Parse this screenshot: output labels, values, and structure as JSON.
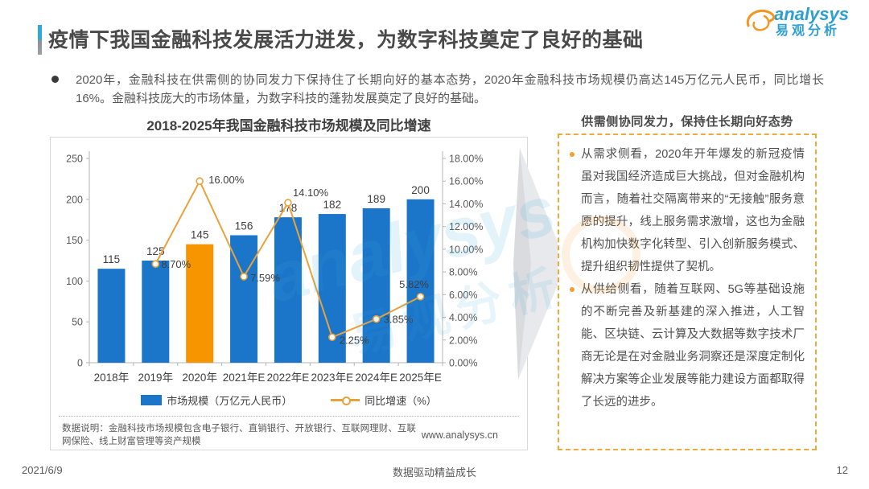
{
  "header": {
    "title": "疫情下我国金融科技发展活力迸发，为数字科技奠定了良好的基础",
    "logo": {
      "brand": "analysys",
      "brand_cn": "易观分析"
    }
  },
  "summary": {
    "bullet": "2020年，金融科技在供需侧的协同发力下保持住了长期向好的基本态势，2020年金融科技市场规模仍高达145万亿元人民币，同比增长16%。金融科技庞大的市场体量，为数字科技的蓬勃发展奠定了良好的基础。"
  },
  "chart_data": {
    "type": "bar",
    "combo": "bar+line",
    "title": "2018-2025年我国金融科技市场规模及同比增速",
    "categories": [
      "2018年",
      "2019年",
      "2020年",
      "2021年E",
      "2022年E",
      "2023年E",
      "2024年E",
      "2025年E"
    ],
    "series": [
      {
        "name": "市场规模（万亿元人民币）",
        "type": "bar",
        "values": [
          115,
          125,
          145,
          156,
          178,
          182,
          189,
          200
        ]
      },
      {
        "name": "同比增速（%）",
        "type": "line",
        "values": [
          null,
          8.7,
          16.0,
          7.59,
          14.1,
          2.25,
          3.85,
          5.82
        ],
        "labels": [
          "",
          "8.70%",
          "16.00%",
          "7.59%",
          "14.10%",
          "2.25%",
          "3.85%",
          "5.82%"
        ]
      }
    ],
    "highlight_index": 2,
    "bar_color": "#1b75c9",
    "highlight_color": "#f79500",
    "line_color": "#e9a23b",
    "left_axis": {
      "min": 0,
      "max": 250,
      "ticks": [
        250,
        200,
        150,
        100,
        50,
        0
      ]
    },
    "right_axis": {
      "min": 0,
      "max": 18,
      "ticks": [
        "18.00%",
        "16.00%",
        "14.00%",
        "12.00%",
        "10.00%",
        "8.00%",
        "6.00%",
        "4.00%",
        "2.00%",
        "0.00%"
      ]
    },
    "grid": false,
    "legend_position": "bottom"
  },
  "chart_card": {
    "note": "数据说明：金融科技市场规模包含电子银行、直销银行、开放银行、互联网理财、互联网保险、线上财富管理等资产规模",
    "website": "www.analysys.cn"
  },
  "panel": {
    "title": "供需侧协同发力，保持住长期向好态势",
    "bullets": [
      "从需求侧看，2020年开年爆发的新冠疫情虽对我国经济造成巨大挑战，但对金融机构而言，随着社交隔离带来的“无接触”服务意愿的提升，线上服务需求激增，这也为金融机构加快数字化转型、引入创新服务模式、提升组织韧性提供了契机。",
      "从供给侧看，随着互联网、5G等基础设施的不断完善及新基建的深入推进，人工智能、区块链、云计算及大数据等数字技术厂商无论是在对金融业务洞察还是深度定制化解决方案等企业发展等能力建设方面都取得了长远的进步。"
    ]
  },
  "footer": {
    "date": "2021/6/9",
    "slogan": "数据驱动精益成长",
    "page": "12"
  },
  "watermark": {
    "text_en": "analysys",
    "text_cn": "易观分析"
  }
}
